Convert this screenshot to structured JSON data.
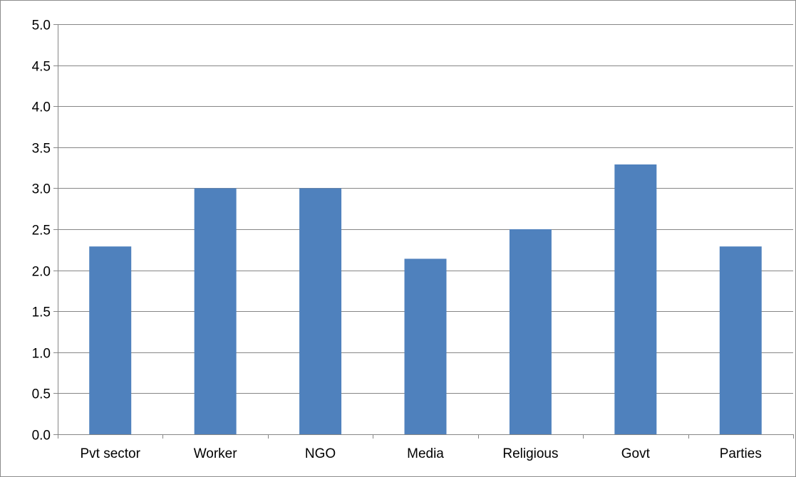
{
  "chart_data": {
    "type": "bar",
    "title": "",
    "xlabel": "",
    "ylabel": "",
    "categories": [
      "Pvt sector",
      "Worker",
      "NGO",
      "Media",
      "Religious",
      "Govt",
      "Parties"
    ],
    "values": [
      2.29,
      3.0,
      3.0,
      2.14,
      2.5,
      3.29,
      2.29
    ],
    "ylim": [
      0,
      5
    ],
    "yticks": [
      "0.0",
      "0.5",
      "1.0",
      "1.5",
      "2.0",
      "2.5",
      "3.0",
      "3.5",
      "4.0",
      "4.5",
      "5.0"
    ],
    "grid": true,
    "legend": "none",
    "colors": {
      "bar": "#4f81bd",
      "grid": "#868686",
      "axis": "#868686"
    }
  }
}
